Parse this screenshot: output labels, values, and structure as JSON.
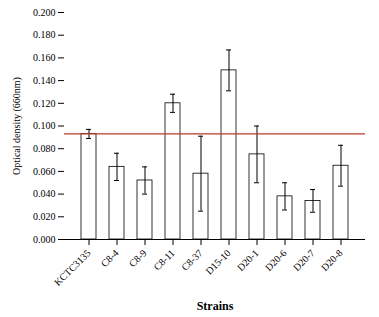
{
  "chart_data": {
    "type": "bar",
    "categories": [
      "KCTC3135",
      "C8-4",
      "C8-9",
      "C8-11",
      "C8-37",
      "D15-10",
      "D20-1",
      "D20-6",
      "D20-7",
      "D20-8"
    ],
    "values": [
      0.093,
      0.064,
      0.052,
      0.12,
      0.058,
      0.149,
      0.075,
      0.038,
      0.034,
      0.065
    ],
    "errors": [
      0.004,
      0.012,
      0.012,
      0.008,
      0.033,
      0.018,
      0.025,
      0.012,
      0.01,
      0.018
    ],
    "color": "#ffffff",
    "reference_line": {
      "value": 0.093,
      "color": "#c0392b"
    },
    "xlabel": "Strains",
    "ylabel": "Optical density (660nm)",
    "ylim": [
      0.0,
      0.2
    ],
    "yticks": [
      {
        "value": 0.0,
        "label": "0.000"
      },
      {
        "value": 0.02,
        "label": "0.020"
      },
      {
        "value": 0.04,
        "label": "0.040"
      },
      {
        "value": 0.06,
        "label": "0.060"
      },
      {
        "value": 0.08,
        "label": "0.080"
      },
      {
        "value": 0.1,
        "label": "0.100"
      },
      {
        "value": 0.12,
        "label": "0.120"
      },
      {
        "value": 0.14,
        "label": "0.140"
      },
      {
        "value": 0.16,
        "label": "0.160"
      },
      {
        "value": 0.18,
        "label": "0.180"
      },
      {
        "value": 0.2,
        "label": "0.200"
      }
    ],
    "grid": false
  }
}
